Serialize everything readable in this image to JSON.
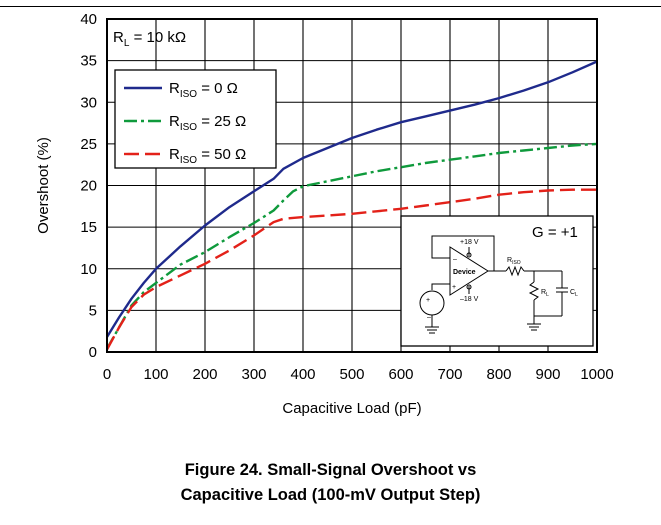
{
  "chart_data": {
    "type": "line",
    "title": "",
    "xlabel": "Capacitive Load (pF)",
    "ylabel": "Overshoot (%)",
    "xlim": [
      0,
      1000
    ],
    "ylim": [
      0,
      40
    ],
    "xticks": [
      "0",
      "100",
      "200",
      "300",
      "400",
      "500",
      "600",
      "700",
      "800",
      "900",
      "1000"
    ],
    "yticks": [
      "0",
      "5",
      "10",
      "15",
      "20",
      "25",
      "30",
      "35",
      "40"
    ],
    "grid": true,
    "legend_position": "top-left",
    "annotations": {
      "rl_main": "R",
      "rl_sub": "L",
      "rl_rest": " = 10 kΩ",
      "gain": "G = +1"
    },
    "series": [
      {
        "name_main": "R",
        "name_sub": "ISO",
        "name_rest": " = 0 Ω",
        "color": "#1f2a8c",
        "dash": "solid",
        "x": [
          0,
          25,
          50,
          75,
          100,
          150,
          200,
          250,
          300,
          340,
          360,
          400,
          450,
          500,
          550,
          600,
          650,
          700,
          750,
          800,
          850,
          900,
          950,
          1000
        ],
        "y": [
          1.8,
          4.2,
          6.4,
          8.3,
          10.0,
          12.7,
          15.2,
          17.4,
          19.3,
          20.8,
          22.0,
          23.3,
          24.5,
          25.7,
          26.7,
          27.6,
          28.3,
          29.0,
          29.7,
          30.5,
          31.4,
          32.4,
          33.6,
          34.9
        ]
      },
      {
        "name_main": "R",
        "name_sub": "ISO",
        "name_rest": " = 25 Ω",
        "color": "#0f9a3c",
        "dash": "dashdot",
        "x": [
          0,
          25,
          50,
          75,
          100,
          150,
          200,
          250,
          300,
          340,
          360,
          380,
          400,
          450,
          500,
          550,
          600,
          650,
          700,
          750,
          800,
          850,
          900,
          950,
          1000
        ],
        "y": [
          0.4,
          3.0,
          5.6,
          7.2,
          8.3,
          10.5,
          12.0,
          13.8,
          15.5,
          17.0,
          18.2,
          19.3,
          19.9,
          20.5,
          21.1,
          21.7,
          22.2,
          22.7,
          23.1,
          23.5,
          23.9,
          24.2,
          24.5,
          24.8,
          25.0
        ]
      },
      {
        "name_main": "R",
        "name_sub": "ISO",
        "name_rest": " = 50 Ω",
        "color": "#e32119",
        "dash": "dashed",
        "x": [
          0,
          25,
          50,
          75,
          100,
          150,
          200,
          250,
          300,
          340,
          360,
          400,
          450,
          500,
          550,
          600,
          650,
          700,
          750,
          800,
          850,
          900,
          950,
          1000
        ],
        "y": [
          0.3,
          3.0,
          5.4,
          6.9,
          7.8,
          9.2,
          10.6,
          12.2,
          14.0,
          15.6,
          16.0,
          16.2,
          16.4,
          16.6,
          16.9,
          17.2,
          17.6,
          18.0,
          18.4,
          18.9,
          19.2,
          19.4,
          19.5,
          19.5
        ]
      }
    ],
    "inset": {
      "gain": "G = +1",
      "device": "Device",
      "vpos": "+18 V",
      "vneg": "–18 V",
      "riso_main": "R",
      "riso_sub": "ISO",
      "rl_main": "R",
      "rl_sub": "L",
      "cl_main": "C",
      "cl_sub": "L",
      "minus": "–",
      "plus": "+",
      "src_plus": "+",
      "src_minus": "–"
    }
  },
  "caption": {
    "line1": "Figure 24. Small-Signal Overshoot vs",
    "line2": "Capacitive Load (100-mV Output Step)"
  }
}
